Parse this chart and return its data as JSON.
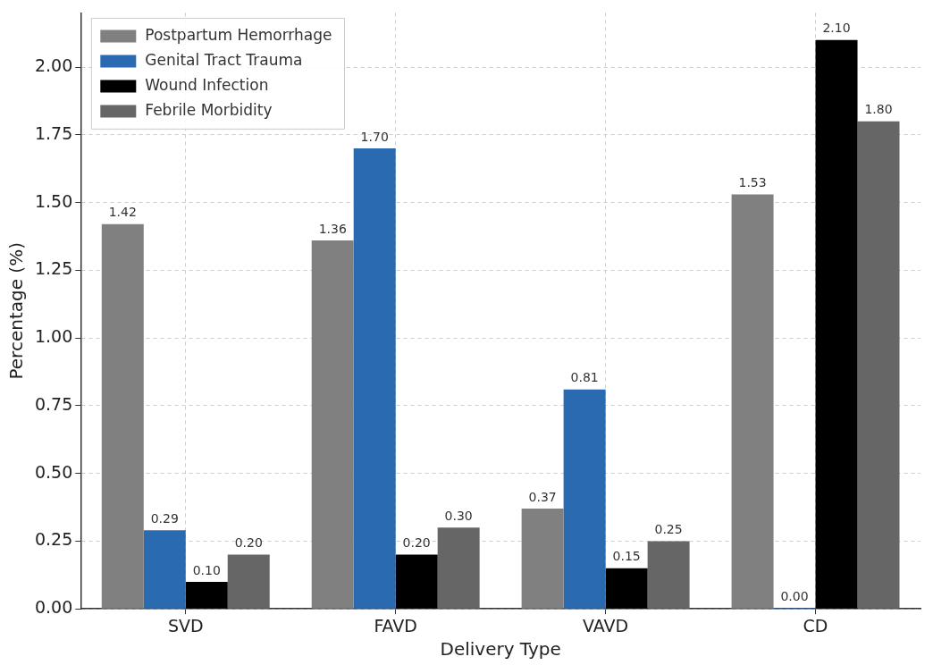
{
  "chart_data": {
    "type": "bar",
    "xlabel": "Delivery Type",
    "ylabel": "Percentage (%)",
    "categories": [
      "SVD",
      "FAVD",
      "VAVD",
      "CD"
    ],
    "series": [
      {
        "name": "Postpartum Hemorrhage",
        "color": "#808080",
        "values": [
          1.42,
          1.36,
          0.37,
          1.53
        ],
        "value_labels": [
          "1.42",
          "1.36",
          "0.37",
          "1.53"
        ]
      },
      {
        "name": "Genital Tract Trauma",
        "color": "#2a6ab0",
        "values": [
          0.29,
          1.7,
          0.81,
          0.0
        ],
        "value_labels": [
          "0.29",
          "1.70",
          "0.81",
          "0.00"
        ]
      },
      {
        "name": "Wound Infection",
        "color": "#000000",
        "values": [
          0.1,
          0.2,
          0.15,
          2.1
        ],
        "value_labels": [
          "0.10",
          "0.20",
          "0.15",
          "2.10"
        ]
      },
      {
        "name": "Febrile Morbidity",
        "color": "#666666",
        "values": [
          0.2,
          0.3,
          0.25,
          1.8
        ],
        "value_labels": [
          "0.20",
          "0.30",
          "0.25",
          "1.80"
        ]
      }
    ],
    "ylim": [
      0,
      2.2
    ],
    "yticks": [
      {
        "value": 0,
        "label": "0.00"
      },
      {
        "value": 0.25,
        "label": "0.25"
      },
      {
        "value": 0.5,
        "label": "0.50"
      },
      {
        "value": 0.75,
        "label": "0.75"
      },
      {
        "value": 1,
        "label": "1.00"
      },
      {
        "value": 1.25,
        "label": "1.25"
      },
      {
        "value": 1.5,
        "label": "1.50"
      },
      {
        "value": 1.75,
        "label": "1.75"
      },
      {
        "value": 2,
        "label": "2.00"
      }
    ],
    "grid": true,
    "legend": "top left"
  }
}
